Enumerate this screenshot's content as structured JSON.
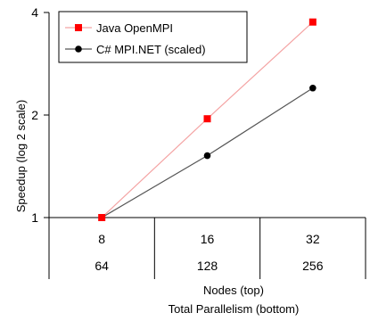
{
  "chart_data": {
    "type": "line",
    "y_scale": "log2",
    "ylabel": "Speedup (log 2 scale)",
    "ylim": [
      1,
      4
    ],
    "y_ticks": [
      "1",
      "2",
      "4"
    ],
    "categories": [
      "8",
      "16",
      "32"
    ],
    "categories_bottom": [
      "64",
      "128",
      "256"
    ],
    "xlabel": "Nodes (top)",
    "xlabel_bottom": "Total Parallelism (bottom)",
    "grid": false,
    "legend_position": "top-left",
    "series": [
      {
        "name": "Java OpenMPI",
        "color": "#ff0000",
        "line_color": "#f4a3a3",
        "marker": "square",
        "values": [
          1.0,
          1.95,
          3.75
        ]
      },
      {
        "name": "C# MPI.NET (scaled)",
        "color": "#000000",
        "line_color": "#555555",
        "marker": "circle",
        "values": [
          1.0,
          1.52,
          2.4
        ]
      }
    ]
  }
}
